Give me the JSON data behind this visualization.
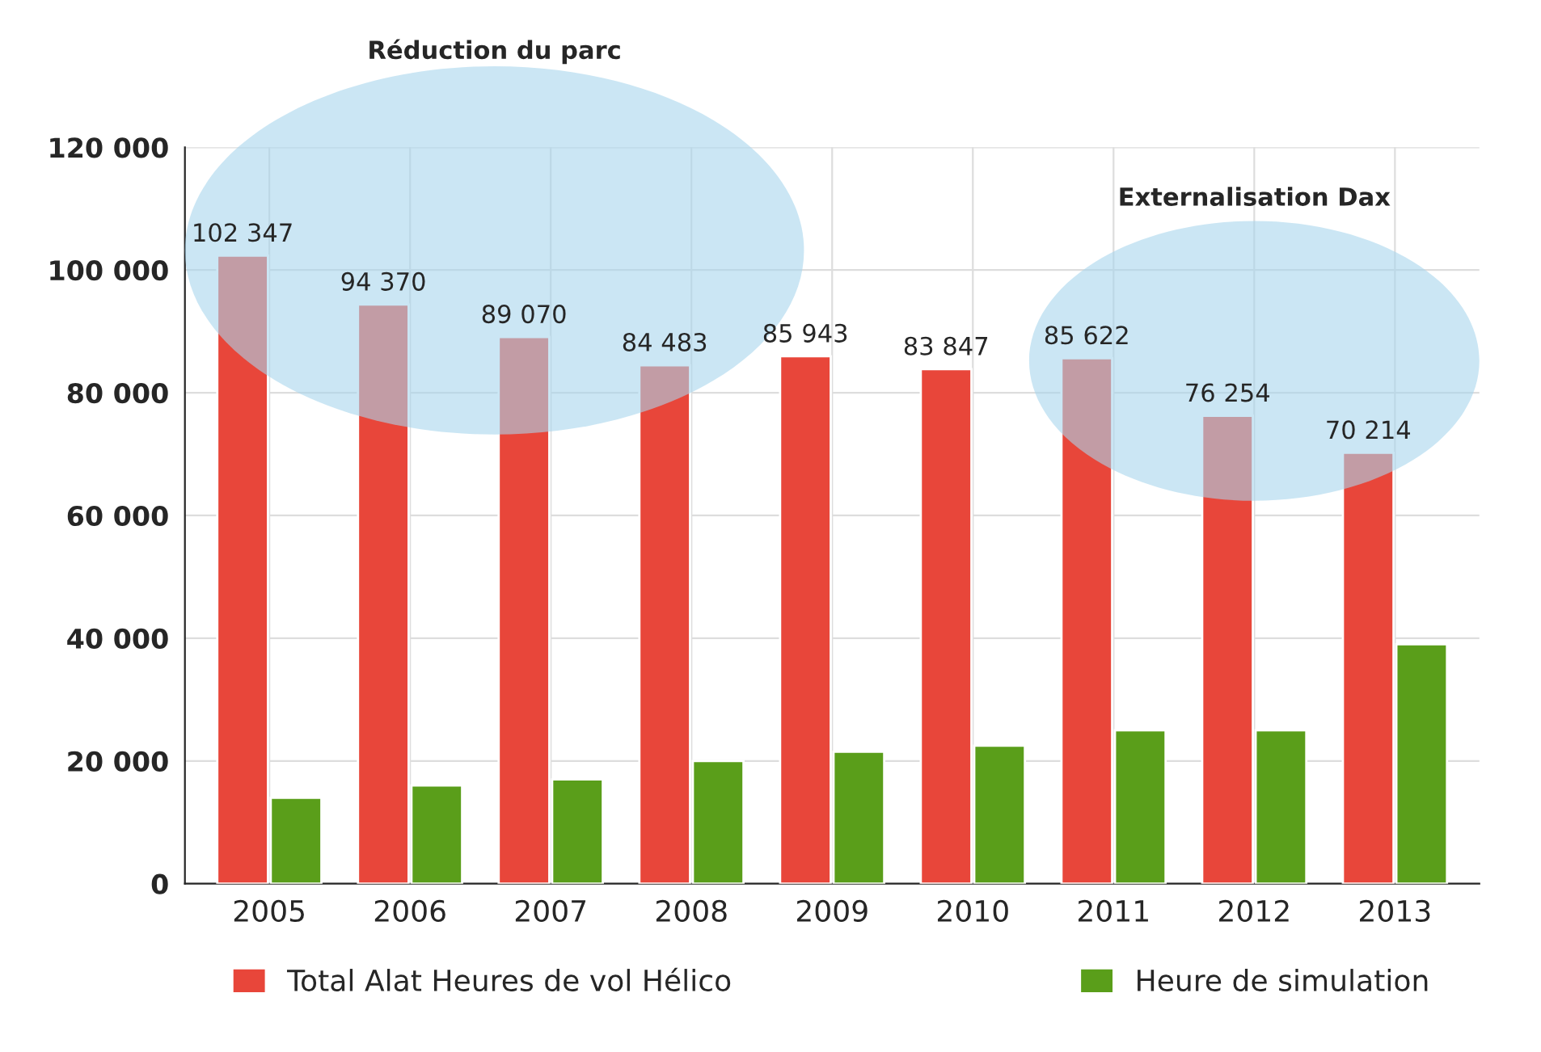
{
  "chart_data": {
    "type": "bar",
    "categories": [
      "2005",
      "2006",
      "2007",
      "2008",
      "2009",
      "2010",
      "2011",
      "2012",
      "2013"
    ],
    "series": [
      {
        "name": "Total Alat Heures de vol Hélico",
        "color": "#e8463a",
        "values": [
          102347,
          94370,
          89070,
          84483,
          85943,
          83847,
          85622,
          76254,
          70214
        ],
        "value_labels": [
          "102 347",
          "94 370",
          "89 070",
          "84 483",
          "85 943",
          "83 847",
          "85 622",
          "76 254",
          "70 214"
        ]
      },
      {
        "name": "Heure de simulation",
        "color": "#5a9e1a",
        "values": [
          14000,
          16000,
          17000,
          20000,
          21500,
          22500,
          25000,
          25000,
          39000
        ]
      }
    ],
    "ylim": [
      0,
      120000
    ],
    "yticks": [
      {
        "value": 0,
        "label": "0"
      },
      {
        "value": 20000,
        "label": "20 000"
      },
      {
        "value": 40000,
        "label": "40 000"
      },
      {
        "value": 60000,
        "label": "60 000"
      },
      {
        "value": 80000,
        "label": "80 000"
      },
      {
        "value": 100000,
        "label": "100 000"
      },
      {
        "value": 120000,
        "label": "120 000"
      }
    ],
    "grid": true,
    "legend": "bottom",
    "annotations": [
      "Réduction du parc",
      "Externalisation Dax"
    ]
  }
}
